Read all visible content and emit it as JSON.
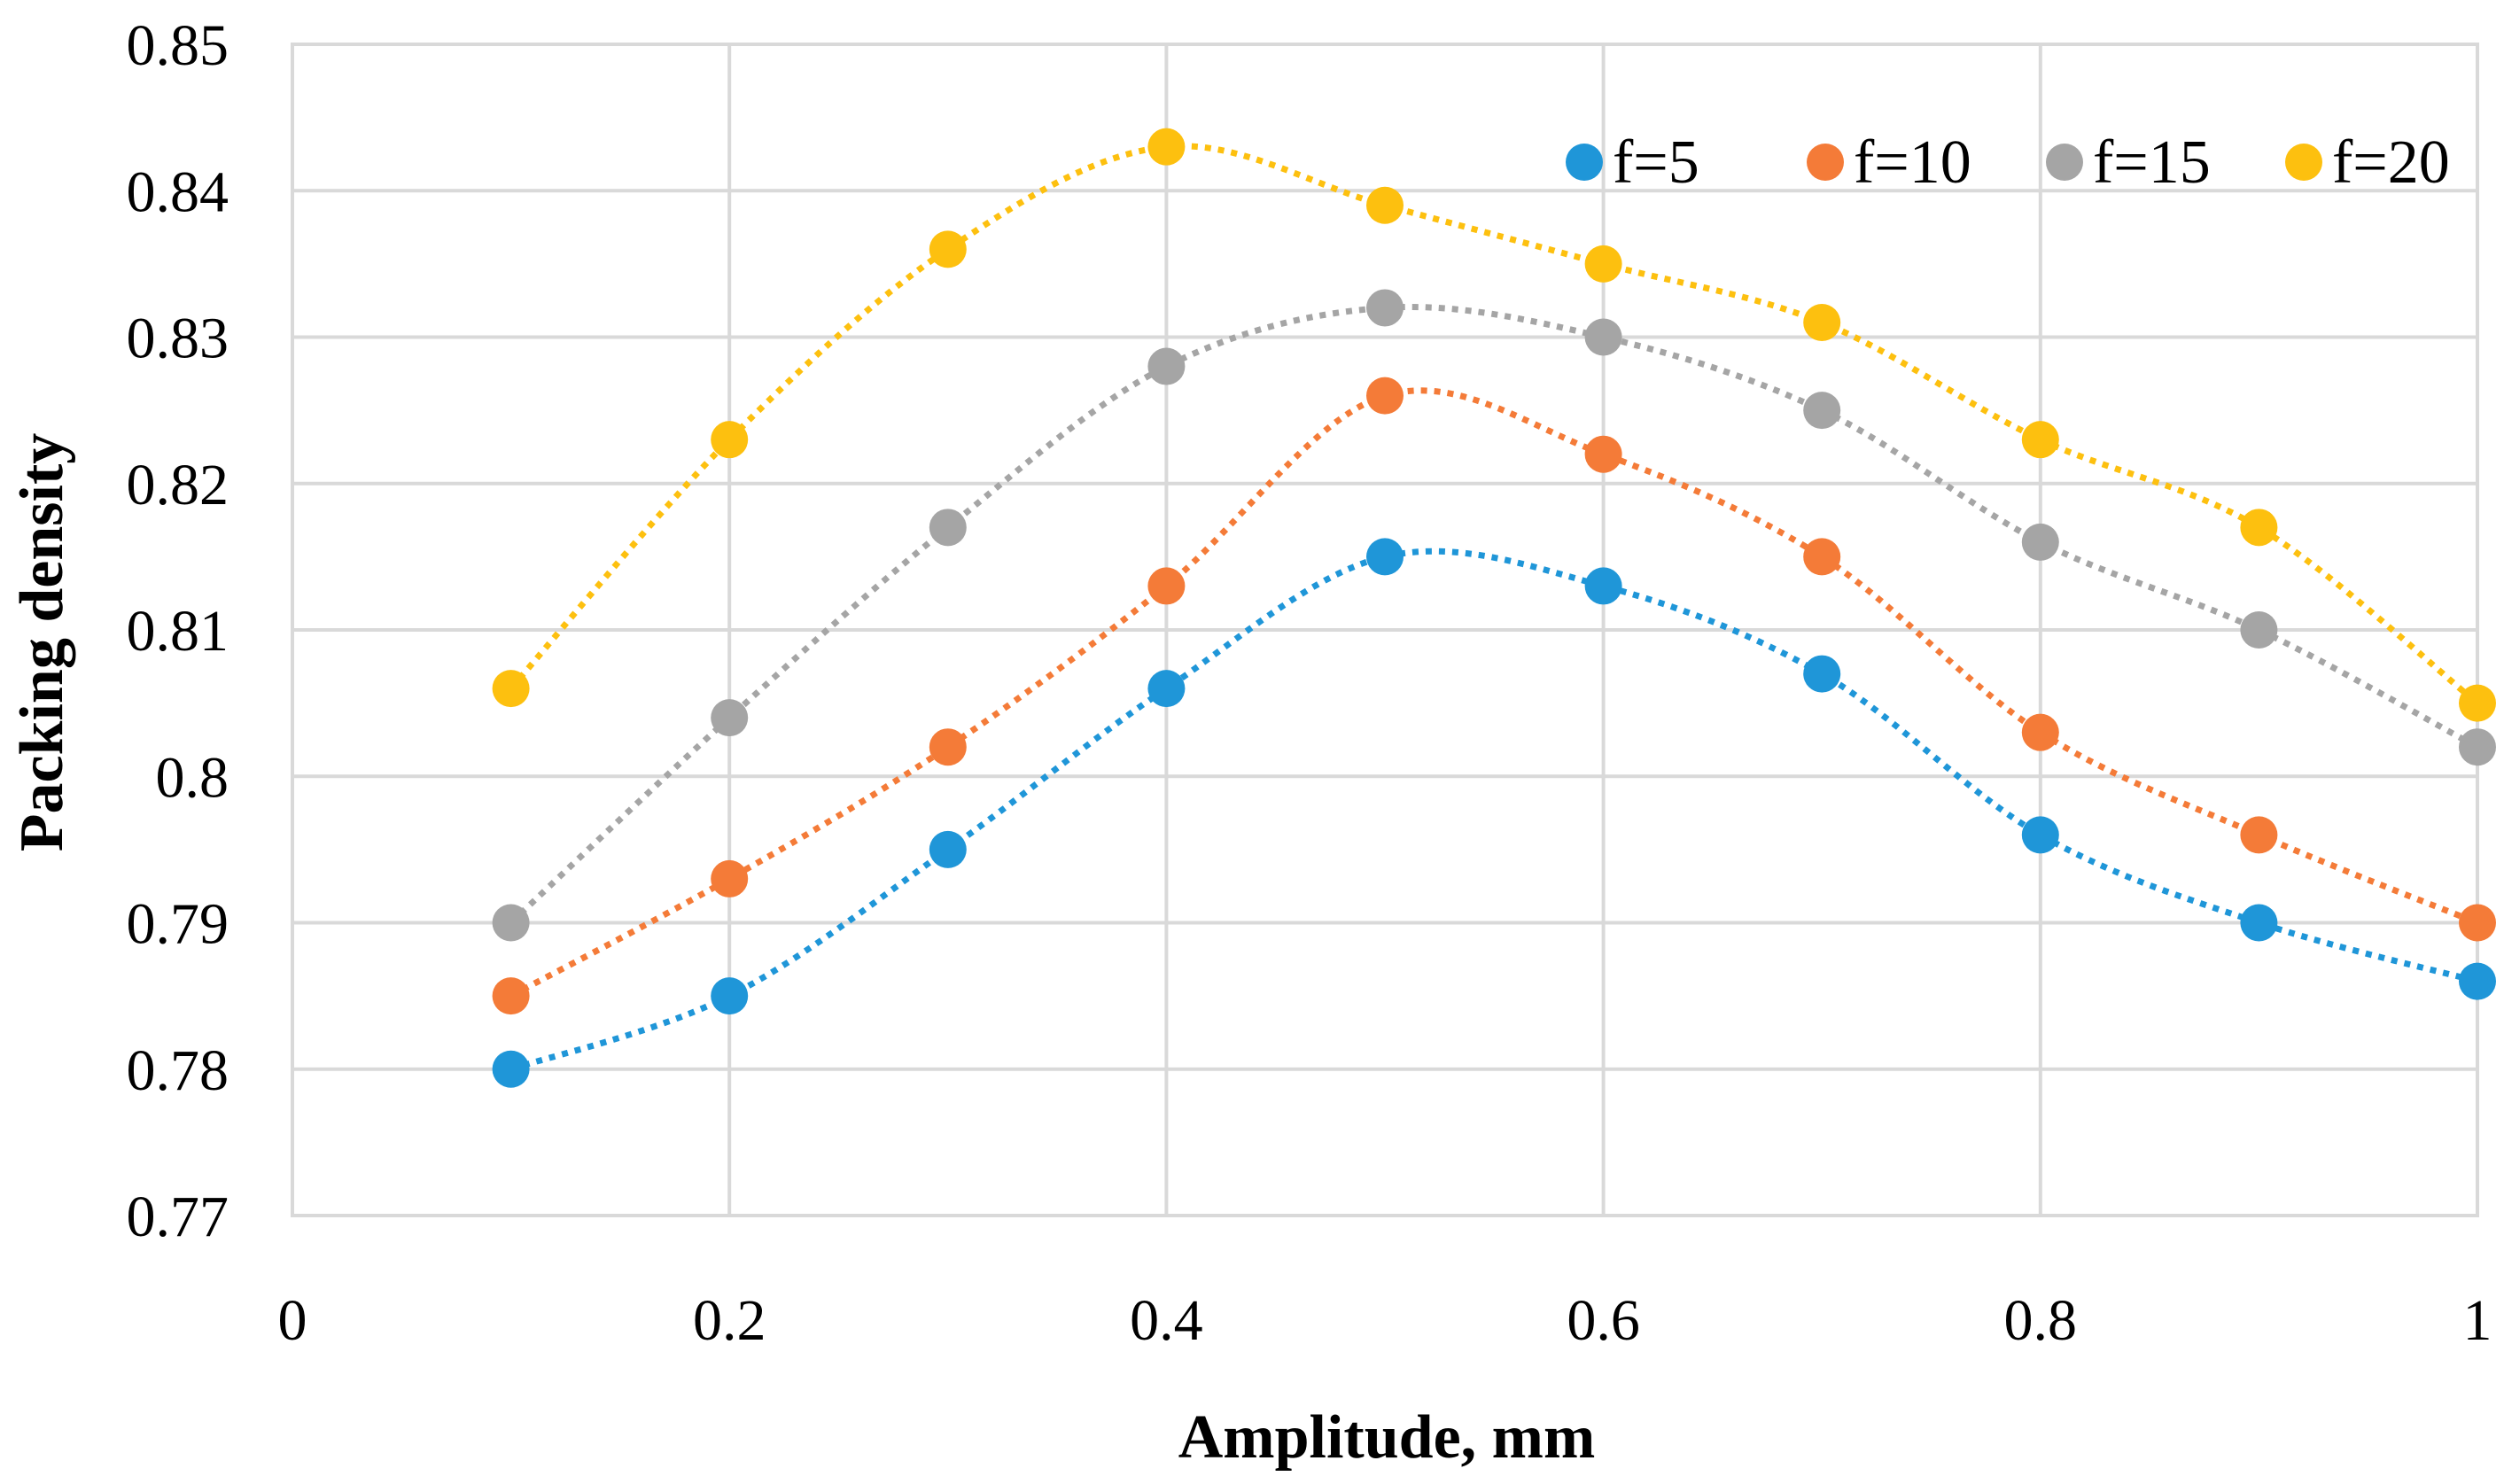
{
  "chart_data": {
    "type": "scatter",
    "title": "",
    "xlabel": "Amplitude, mm",
    "ylabel": "Packing density",
    "xlim": [
      0,
      1
    ],
    "ylim": [
      0.77,
      0.85
    ],
    "x_ticks": [
      "0",
      "0.2",
      "0.4",
      "0.6",
      "0.8",
      "1"
    ],
    "y_ticks": [
      "0.77",
      "0.78",
      "0.79",
      "0.8",
      "0.81",
      "0.82",
      "0.83",
      "0.84",
      "0.85"
    ],
    "grid": true,
    "legend_position": "top-right",
    "trendline": "dotted polynomial",
    "x": [
      0.1,
      0.2,
      0.3,
      0.4,
      0.5,
      0.6,
      0.7,
      0.8,
      0.9,
      1.0
    ],
    "series": [
      {
        "name": "f=5",
        "color": "#1f96d8",
        "values": [
          0.78,
          0.785,
          0.795,
          0.806,
          0.815,
          0.813,
          0.807,
          0.796,
          0.79,
          0.786
        ]
      },
      {
        "name": "f=10",
        "color": "#f47b38",
        "values": [
          0.785,
          0.793,
          0.802,
          0.813,
          0.826,
          0.822,
          0.815,
          0.803,
          0.796,
          0.79
        ]
      },
      {
        "name": "f=15",
        "color": "#a5a5a5",
        "values": [
          0.79,
          0.804,
          0.817,
          0.828,
          0.832,
          0.83,
          0.825,
          0.816,
          0.81,
          0.802
        ]
      },
      {
        "name": "f=20",
        "color": "#fdc00f",
        "values": [
          0.806,
          0.823,
          0.836,
          0.843,
          0.839,
          0.835,
          0.831,
          0.823,
          0.817,
          0.805
        ]
      }
    ]
  }
}
